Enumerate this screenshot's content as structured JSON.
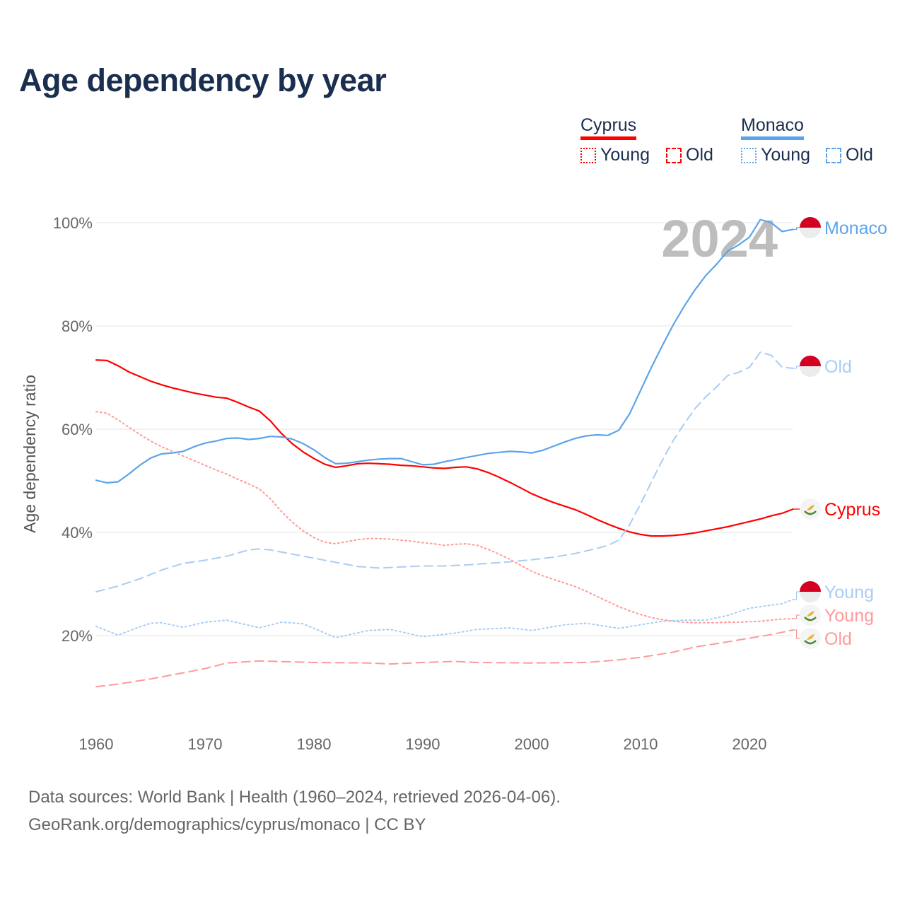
{
  "title": "Age dependency by year",
  "legend": {
    "countries": [
      {
        "name": "Cyprus",
        "color": "#ff0000",
        "items": [
          "Young",
          "Old"
        ]
      },
      {
        "name": "Monaco",
        "color": "#5ca4ea",
        "items": [
          "Young",
          "Old"
        ]
      }
    ]
  },
  "year_watermark": "2024",
  "source_lines": [
    "Data sources: World Bank | Health (1960–2024, retrieved 2026-04-06).",
    "GeoRank.org/demographics/cyprus/monaco | CC BY"
  ],
  "chart_data": {
    "type": "line",
    "title": "Age dependency by year",
    "xlabel": "",
    "ylabel": "Age dependency ratio",
    "xlim": [
      1960,
      2024
    ],
    "ylim": [
      0,
      100
    ],
    "xticks": [
      "1960",
      "1970",
      "1980",
      "1990",
      "2000",
      "2010",
      "2020"
    ],
    "yticks": [
      "20%",
      "40%",
      "60%",
      "80%",
      "100%"
    ],
    "grid": true,
    "legend_position": "top-right",
    "series": [
      {
        "name": "Cyprus",
        "label": "Cyprus",
        "country": "Cyprus",
        "kind": "total",
        "color": "#ff0000",
        "dash": "solid",
        "flag": "cyprus",
        "x": [
          1960,
          1961,
          1962,
          1963,
          1964,
          1965,
          1966,
          1967,
          1968,
          1969,
          1970,
          1971,
          1972,
          1973,
          1974,
          1975,
          1976,
          1977,
          1978,
          1979,
          1980,
          1981,
          1982,
          1983,
          1984,
          1985,
          1986,
          1987,
          1988,
          1989,
          1990,
          1991,
          1992,
          1993,
          1994,
          1995,
          1996,
          1997,
          1998,
          1999,
          2000,
          2001,
          2002,
          2003,
          2004,
          2005,
          2006,
          2007,
          2008,
          2009,
          2010,
          2011,
          2012,
          2013,
          2014,
          2015,
          2016,
          2017,
          2018,
          2019,
          2020,
          2021,
          2022,
          2023,
          2024
        ],
        "y": [
          73.4,
          73.3,
          72.3,
          71.1,
          70.2,
          69.3,
          68.6,
          68.0,
          67.5,
          67.0,
          66.6,
          66.2,
          66.0,
          65.2,
          64.3,
          63.5,
          61.6,
          59.2,
          57.2,
          55.6,
          54.3,
          53.2,
          52.6,
          52.9,
          53.3,
          53.4,
          53.3,
          53.2,
          53.0,
          52.9,
          52.7,
          52.5,
          52.4,
          52.6,
          52.7,
          52.3,
          51.6,
          50.7,
          49.7,
          48.6,
          47.5,
          46.6,
          45.8,
          45.1,
          44.4,
          43.5,
          42.5,
          41.6,
          40.8,
          40.1,
          39.6,
          39.3,
          39.3,
          39.4,
          39.6,
          39.9,
          40.3,
          40.7,
          41.1,
          41.6,
          42.1,
          42.6,
          43.2,
          43.7,
          44.5
        ]
      },
      {
        "name": "Cyprus Young",
        "label": "Young",
        "country": "Cyprus",
        "kind": "young",
        "color": "#ff9a9a",
        "dash": "dotted",
        "flag": "cyprus",
        "x": [
          1960,
          1961,
          1962,
          1963,
          1964,
          1965,
          1966,
          1967,
          1968,
          1969,
          1970,
          1971,
          1972,
          1973,
          1974,
          1975,
          1976,
          1977,
          1978,
          1979,
          1980,
          1981,
          1982,
          1983,
          1984,
          1985,
          1986,
          1987,
          1988,
          1989,
          1990,
          1991,
          1992,
          1993,
          1994,
          1995,
          1996,
          1997,
          1998,
          1999,
          2000,
          2001,
          2002,
          2003,
          2004,
          2005,
          2006,
          2007,
          2008,
          2009,
          2010,
          2011,
          2012,
          2013,
          2014,
          2015,
          2016,
          2017,
          2018,
          2019,
          2020,
          2021,
          2022,
          2023,
          2024
        ],
        "y": [
          63.4,
          63.1,
          61.8,
          60.4,
          59.0,
          57.7,
          56.6,
          55.7,
          54.8,
          53.9,
          53.0,
          52.1,
          51.3,
          50.3,
          49.4,
          48.4,
          46.5,
          44.1,
          42.0,
          40.3,
          39.0,
          38.1,
          37.8,
          38.2,
          38.6,
          38.8,
          38.8,
          38.7,
          38.5,
          38.3,
          38.0,
          37.8,
          37.5,
          37.7,
          37.8,
          37.5,
          36.7,
          35.8,
          34.8,
          33.6,
          32.5,
          31.6,
          30.9,
          30.2,
          29.5,
          28.6,
          27.6,
          26.6,
          25.6,
          24.8,
          24.1,
          23.5,
          23.1,
          22.8,
          22.6,
          22.5,
          22.5,
          22.5,
          22.6,
          22.6,
          22.7,
          22.8,
          23.0,
          23.2,
          23.3
        ]
      },
      {
        "name": "Cyprus Old",
        "label": "Old",
        "country": "Cyprus",
        "kind": "old",
        "color": "#ff9a9a",
        "dash": "dashed",
        "flag": "cyprus",
        "x": [
          1960,
          1962,
          1965,
          1968,
          1970,
          1972,
          1975,
          1980,
          1985,
          1987,
          1990,
          1993,
          1995,
          2000,
          2005,
          2008,
          2010,
          2013,
          2015,
          2018,
          2020,
          2022,
          2024
        ],
        "y": [
          10.1,
          10.6,
          11.6,
          12.8,
          13.6,
          14.7,
          15.1,
          14.8,
          14.7,
          14.5,
          14.8,
          15.0,
          14.8,
          14.7,
          14.8,
          15.3,
          15.8,
          16.8,
          17.8,
          18.8,
          19.5,
          20.2,
          21.1
        ]
      },
      {
        "name": "Monaco",
        "label": "Monaco",
        "country": "Monaco",
        "kind": "total",
        "color": "#5ca4ea",
        "dash": "solid",
        "flag": "monaco",
        "x": [
          1960,
          1961,
          1962,
          1963,
          1964,
          1965,
          1966,
          1967,
          1968,
          1969,
          1970,
          1971,
          1972,
          1973,
          1974,
          1975,
          1976,
          1977,
          1978,
          1979,
          1980,
          1981,
          1982,
          1983,
          1984,
          1985,
          1986,
          1987,
          1988,
          1989,
          1990,
          1991,
          1992,
          1993,
          1994,
          1995,
          1996,
          1997,
          1998,
          1999,
          2000,
          2001,
          2002,
          2003,
          2004,
          2005,
          2006,
          2007,
          2008,
          2009,
          2010,
          2011,
          2012,
          2013,
          2014,
          2015,
          2016,
          2017,
          2018,
          2019,
          2020,
          2021,
          2022,
          2023,
          2024
        ],
        "y": [
          50.1,
          49.6,
          49.8,
          51.3,
          53.0,
          54.4,
          55.2,
          55.4,
          55.7,
          56.6,
          57.3,
          57.7,
          58.2,
          58.3,
          58.0,
          58.2,
          58.6,
          58.5,
          58.1,
          57.2,
          56.0,
          54.5,
          53.3,
          53.4,
          53.7,
          54.0,
          54.2,
          54.3,
          54.3,
          53.7,
          53.1,
          53.2,
          53.7,
          54.1,
          54.5,
          54.9,
          55.3,
          55.5,
          55.7,
          55.6,
          55.4,
          55.9,
          56.7,
          57.5,
          58.2,
          58.7,
          58.9,
          58.8,
          59.8,
          63.0,
          67.5,
          72.0,
          76.2,
          80.2,
          83.8,
          87.0,
          89.8,
          92.0,
          94.5,
          95.7,
          97.2,
          100.6,
          100.0,
          98.3,
          98.7
        ]
      },
      {
        "name": "Monaco Young",
        "label": "Young",
        "country": "Monaco",
        "kind": "young",
        "color": "#a9cdf4",
        "dash": "dotted",
        "flag": "monaco",
        "x": [
          1960,
          1962,
          1964,
          1965,
          1966,
          1968,
          1970,
          1972,
          1975,
          1977,
          1979,
          1982,
          1985,
          1987,
          1990,
          1993,
          1995,
          1998,
          2000,
          2003,
          2005,
          2008,
          2010,
          2012,
          2014,
          2016,
          2018,
          2020,
          2022,
          2023,
          2024
        ],
        "y": [
          21.8,
          20.1,
          21.7,
          22.4,
          22.5,
          21.6,
          22.6,
          23.0,
          21.5,
          22.6,
          22.3,
          19.6,
          21.0,
          21.2,
          19.8,
          20.5,
          21.2,
          21.5,
          21.0,
          22.1,
          22.4,
          21.4,
          22.1,
          22.8,
          23.0,
          23.0,
          23.9,
          25.3,
          25.9,
          26.2,
          27.0
        ]
      },
      {
        "name": "Monaco Old",
        "label": "Old",
        "country": "Monaco",
        "kind": "old",
        "color": "#a9cdf4",
        "dash": "dashed",
        "flag": "monaco",
        "x": [
          1960,
          1962,
          1964,
          1966,
          1968,
          1970,
          1972,
          1974,
          1975,
          1976,
          1978,
          1980,
          1982,
          1984,
          1986,
          1988,
          1990,
          1992,
          1994,
          1996,
          1998,
          2000,
          2002,
          2004,
          2006,
          2007,
          2008,
          2009,
          2010,
          2011,
          2012,
          2013,
          2014,
          2015,
          2016,
          2017,
          2018,
          2019,
          2020,
          2021,
          2022,
          2023,
          2024
        ],
        "y": [
          28.5,
          29.6,
          31.0,
          32.7,
          34.0,
          34.6,
          35.4,
          36.6,
          36.8,
          36.6,
          35.8,
          35.0,
          34.2,
          33.4,
          33.1,
          33.3,
          33.5,
          33.5,
          33.7,
          34.0,
          34.3,
          34.7,
          35.2,
          35.9,
          36.9,
          37.5,
          38.5,
          41.5,
          45.5,
          49.8,
          54.0,
          57.8,
          61.0,
          64.0,
          66.3,
          68.2,
          70.4,
          71.0,
          72.0,
          74.9,
          74.3,
          72.0,
          71.8
        ]
      }
    ]
  }
}
